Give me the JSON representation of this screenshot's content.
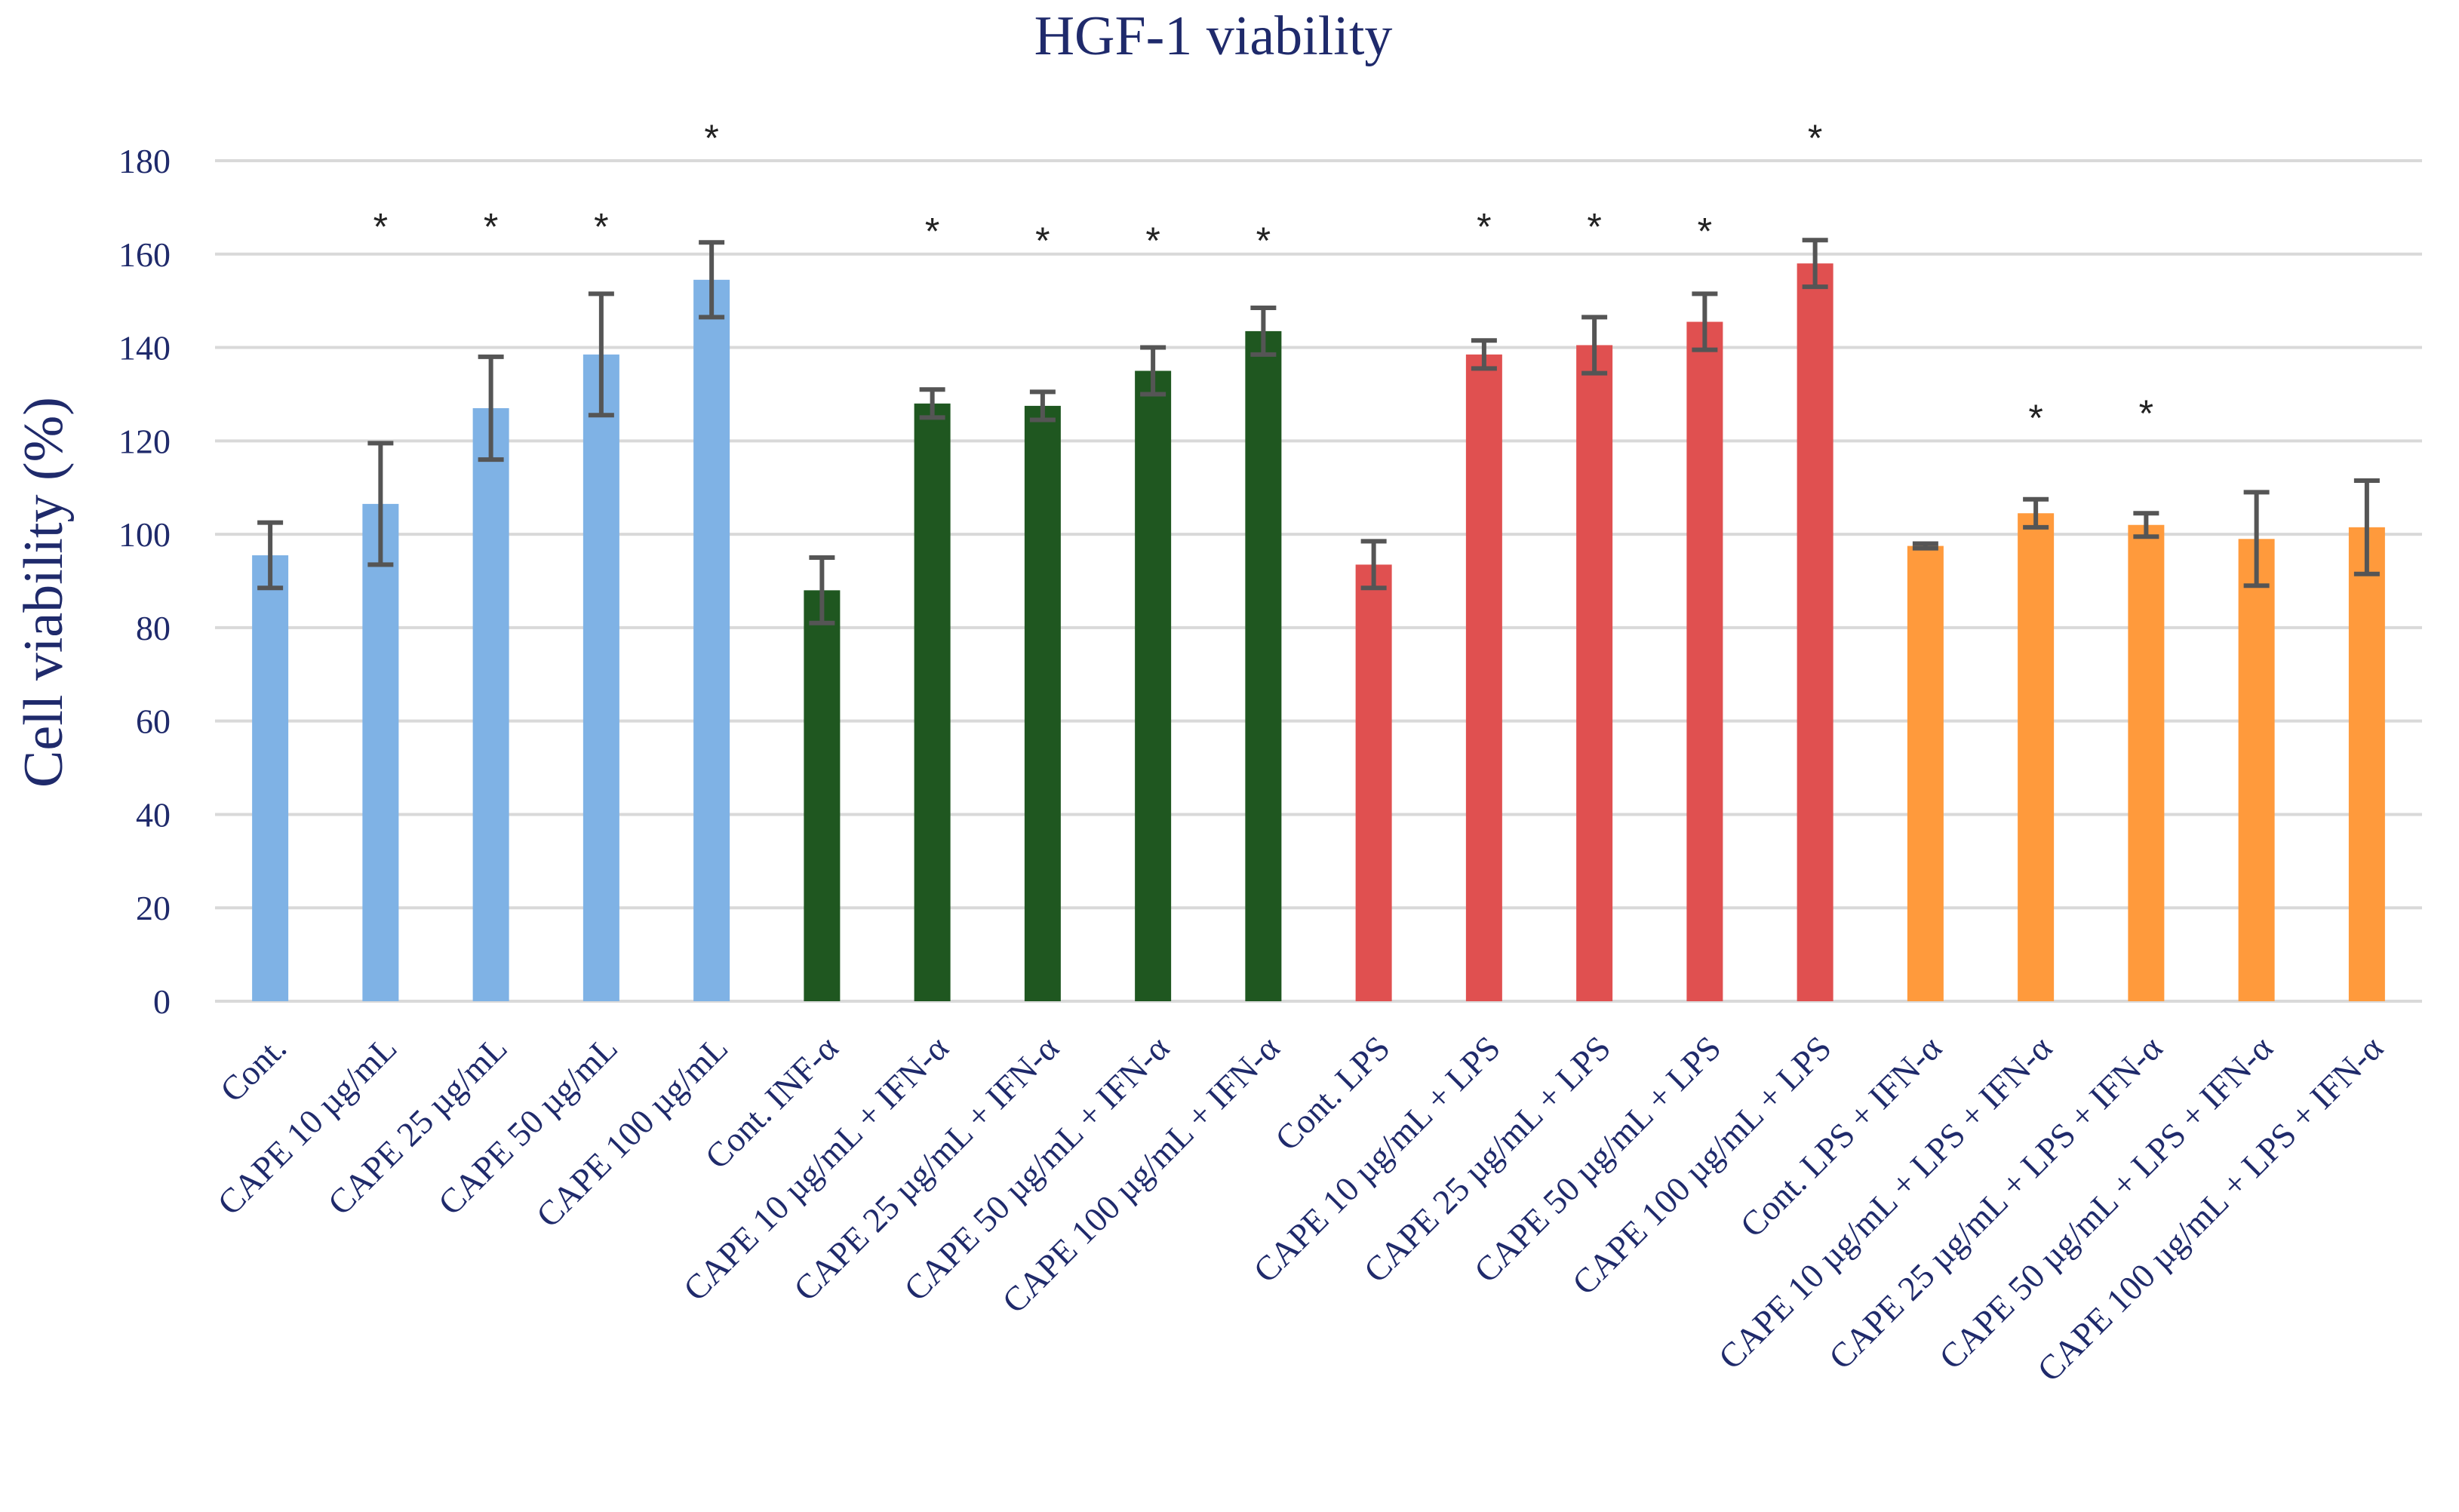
{
  "chart_data": {
    "type": "bar",
    "title": "HGF-1 viability",
    "xlabel": "",
    "ylabel": "Cell viability (%)",
    "ylim": [
      0,
      180
    ],
    "yticks": [
      0,
      20,
      40,
      60,
      80,
      100,
      120,
      140,
      160,
      180
    ],
    "grid": true,
    "legend": "none",
    "categories": [
      "Cont.",
      "CAPE 10 µg/mL",
      "CAPE 25 µg/mL",
      "CAPE 50 µg/mL",
      "CAPE 100 µg/mL",
      "Cont. INF-α",
      "CAPE 10 µg/mL + IFN-α",
      "CAPE 25 µg/mL + IFN-α",
      "CAPE 50 µg/mL + IFN-α",
      "CAPE 100 µg/mL + IFN-α",
      "Cont. LPS",
      "CAPE 10 µg/mL + LPS",
      "CAPE 25 µg/mL + LPS",
      "CAPE 50 µg/mL + LPS",
      "CAPE 100 µg/mL + LPS",
      "Cont. LPS + IFN-α",
      "CAPE 10 µg/mL + LPS + IFN-α",
      "CAPE 25 µg/mL + LPS + IFN-α",
      "CAPE 50 µg/mL + LPS + IFN-α",
      "CAPE 100 µg/mL + LPS + IFN-α"
    ],
    "values": [
      95.5,
      106.5,
      127,
      138.5,
      154.5,
      88,
      128,
      127.5,
      135,
      143.5,
      93.5,
      138.5,
      140.5,
      145.5,
      158,
      97.5,
      104.5,
      102,
      99,
      101.5
    ],
    "errors": [
      7,
      13,
      11,
      13,
      8,
      7,
      3,
      3,
      5,
      5,
      5,
      3,
      6,
      6,
      5,
      0.5,
      3,
      2.5,
      10,
      10
    ],
    "significance": [
      "",
      "*",
      "*",
      "*",
      "*",
      "",
      "*",
      "*",
      "*",
      "*",
      "",
      "*",
      "*",
      "*",
      "*",
      "",
      "*",
      "*",
      "",
      ""
    ],
    "significance_y": [
      0,
      167,
      167,
      167,
      186,
      0,
      166,
      164,
      164,
      164,
      0,
      167,
      167,
      166,
      186,
      0,
      126,
      127,
      0,
      0
    ],
    "colors": [
      "#7fb2e5",
      "#7fb2e5",
      "#7fb2e5",
      "#7fb2e5",
      "#7fb2e5",
      "#1f5720",
      "#1f5720",
      "#1f5720",
      "#1f5720",
      "#1f5720",
      "#e05050",
      "#e05050",
      "#e05050",
      "#e05050",
      "#e05050",
      "#ff9a3c",
      "#ff9a3c",
      "#ff9a3c",
      "#ff9a3c",
      "#ff9a3c"
    ]
  }
}
